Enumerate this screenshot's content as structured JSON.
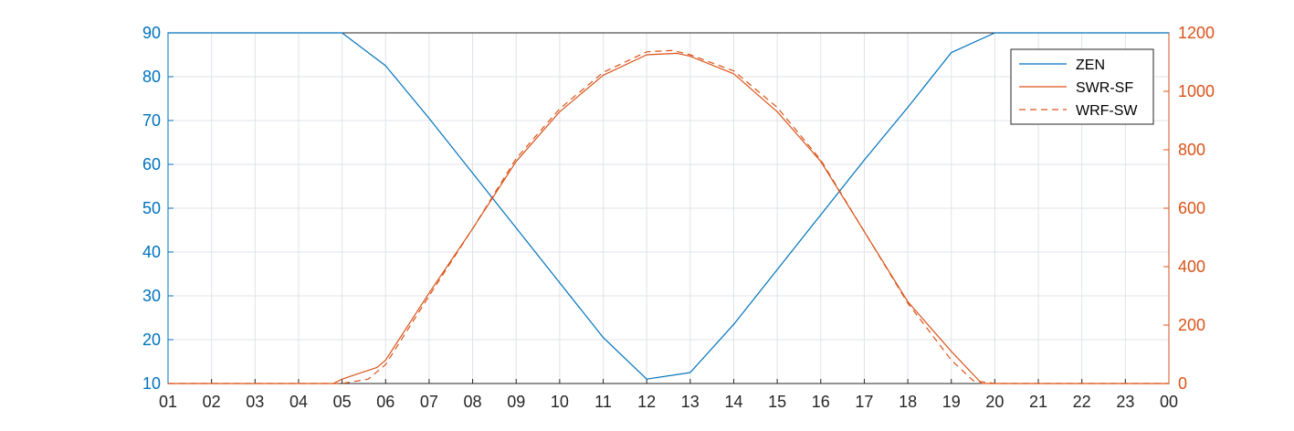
{
  "chart_data": {
    "type": "line",
    "x_categories": [
      "01",
      "02",
      "03",
      "04",
      "05",
      "06",
      "07",
      "08",
      "09",
      "10",
      "11",
      "12",
      "13",
      "14",
      "15",
      "16",
      "17",
      "18",
      "19",
      "20",
      "21",
      "22",
      "23",
      "00"
    ],
    "y_left": {
      "lim": [
        10,
        90
      ],
      "ticks": [
        10,
        20,
        30,
        40,
        50,
        60,
        70,
        80,
        90
      ],
      "color": "#0072BD"
    },
    "y_right": {
      "lim": [
        0,
        1200
      ],
      "ticks": [
        0,
        200,
        400,
        600,
        800,
        1000,
        1200
      ],
      "color": "#D95319"
    },
    "grid": true,
    "legend_position": "top-right",
    "series": [
      {
        "name": "ZEN",
        "axis": "left",
        "color": "#0072BD",
        "style": "solid",
        "points": [
          [
            1,
            90
          ],
          [
            2,
            90
          ],
          [
            3,
            90
          ],
          [
            4,
            90
          ],
          [
            5,
            90
          ],
          [
            6,
            82.5
          ],
          [
            7,
            70.5
          ],
          [
            8,
            58
          ],
          [
            9,
            45.5
          ],
          [
            10,
            33
          ],
          [
            11,
            20.5
          ],
          [
            12,
            11
          ],
          [
            13,
            12.5
          ],
          [
            14,
            23.5
          ],
          [
            15,
            36
          ],
          [
            16,
            48.5
          ],
          [
            17,
            61
          ],
          [
            18,
            73
          ],
          [
            19,
            85.5
          ],
          [
            20,
            90
          ],
          [
            21,
            90
          ],
          [
            22,
            90
          ],
          [
            23,
            90
          ],
          [
            24,
            90
          ]
        ]
      },
      {
        "name": "SWR-SF",
        "axis": "right",
        "color": "#D95319",
        "style": "solid",
        "points": [
          [
            1,
            0
          ],
          [
            2,
            0
          ],
          [
            3,
            0
          ],
          [
            4,
            0
          ],
          [
            4.8,
            0
          ],
          [
            5,
            15
          ],
          [
            5.8,
            55
          ],
          [
            6,
            80
          ],
          [
            7,
            310
          ],
          [
            8,
            530
          ],
          [
            9,
            760
          ],
          [
            10,
            930
          ],
          [
            11,
            1055
          ],
          [
            12,
            1125
          ],
          [
            12.7,
            1130
          ],
          [
            13,
            1120
          ],
          [
            14,
            1060
          ],
          [
            15,
            930
          ],
          [
            16,
            760
          ],
          [
            17,
            520
          ],
          [
            18,
            280
          ],
          [
            19,
            110
          ],
          [
            19.7,
            0
          ],
          [
            20,
            0
          ],
          [
            21,
            0
          ],
          [
            22,
            0
          ],
          [
            23,
            0
          ],
          [
            24,
            0
          ]
        ]
      },
      {
        "name": "WRF-SW",
        "axis": "right",
        "color": "#D95319",
        "style": "dashed",
        "points": [
          [
            1,
            0
          ],
          [
            2,
            0
          ],
          [
            3,
            0
          ],
          [
            4,
            0
          ],
          [
            5,
            0
          ],
          [
            5.6,
            15
          ],
          [
            6,
            65
          ],
          [
            7,
            300
          ],
          [
            8,
            530
          ],
          [
            9,
            770
          ],
          [
            10,
            940
          ],
          [
            11,
            1065
          ],
          [
            12,
            1135
          ],
          [
            12.6,
            1140
          ],
          [
            13,
            1125
          ],
          [
            14,
            1070
          ],
          [
            15,
            945
          ],
          [
            16,
            765
          ],
          [
            17,
            520
          ],
          [
            18,
            275
          ],
          [
            19,
            80
          ],
          [
            19.5,
            10
          ],
          [
            20,
            0
          ],
          [
            21,
            0
          ],
          [
            22,
            0
          ],
          [
            23,
            0
          ],
          [
            24,
            0
          ]
        ]
      }
    ]
  }
}
